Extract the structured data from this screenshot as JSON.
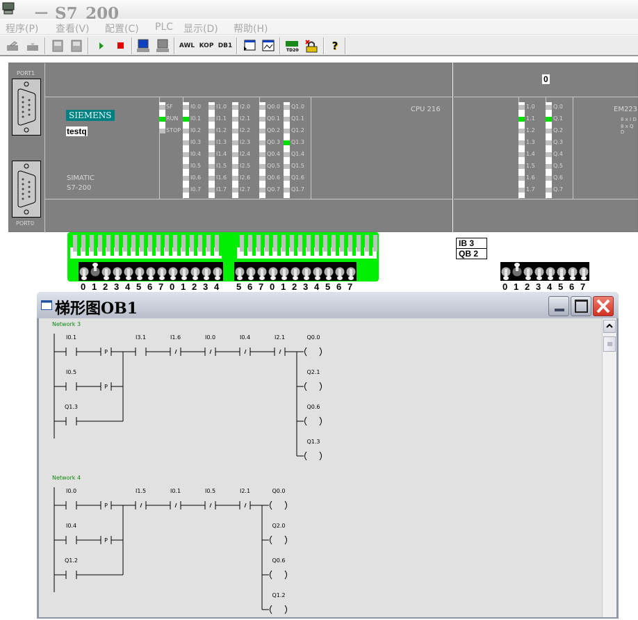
{
  "window": {
    "title": "－ S7_200",
    "icon": "plc-app-icon"
  },
  "menu": [
    "程序(P)",
    "查看(V)",
    "配置(C)",
    "PLC",
    "显示(D)",
    "帮助(H)"
  ],
  "toolbar": {
    "items": [
      {
        "icon": "upload-icon"
      },
      {
        "icon": "download-icon"
      },
      {
        "icon": "ob1-icon"
      },
      {
        "icon": "db1-file-icon"
      },
      {
        "icon": "run-icon"
      },
      {
        "icon": "stop-icon"
      },
      {
        "icon": "monitor-icon"
      },
      {
        "icon": "monitor-off-icon"
      },
      {
        "label": "AWL"
      },
      {
        "label": "KOP"
      },
      {
        "label": "DB1"
      },
      {
        "icon": "state-table-icon"
      },
      {
        "icon": "trend-icon"
      },
      {
        "icon": "td200-icon"
      },
      {
        "icon": "password-icon"
      },
      {
        "icon": "help-icon"
      }
    ]
  },
  "cpu": {
    "brand": "SIEMENS",
    "name": "testq",
    "family": "SIMATIC",
    "model": "S7-200",
    "type": "CPU 216",
    "port1": "PORT1",
    "port0": "PORT0",
    "status_leds": [
      {
        "label": "SF",
        "on": false
      },
      {
        "label": "RUN",
        "on": true
      },
      {
        "label": "STOP",
        "on": false
      }
    ],
    "io_columns": [
      {
        "labels": [
          "I0.0",
          "I0.1",
          "I0.2",
          "I0.3",
          "I0.4",
          "I0.5",
          "I0.6",
          "I0.7"
        ],
        "on": [
          false,
          true,
          false,
          false,
          false,
          false,
          false,
          false
        ]
      },
      {
        "labels": [
          "I1.0",
          "I1.1",
          "I1.2",
          "I1.3",
          "I1.4",
          "I1.5",
          "I1.6",
          "I1.7"
        ],
        "on": [
          false,
          false,
          false,
          false,
          false,
          false,
          false,
          false
        ]
      },
      {
        "labels": [
          "I2.0",
          "I2.1",
          "I2.2",
          "I2.3",
          "I2.4",
          "I2.5",
          "I2.6",
          "I2.7"
        ],
        "on": [
          false,
          false,
          false,
          false,
          false,
          false,
          false,
          false
        ]
      },
      {
        "labels": [
          "Q0.0",
          "Q0.1",
          "Q0.2",
          "Q0.3",
          "Q0.4",
          "Q0.5",
          "Q0.6",
          "Q0.7"
        ],
        "on": [
          false,
          false,
          false,
          false,
          false,
          false,
          false,
          false
        ]
      },
      {
        "labels": [
          "Q1.0",
          "Q1.1",
          "Q1.2",
          "Q1.3",
          "Q1.4",
          "Q1.5",
          "Q1.6",
          "Q1.7"
        ],
        "on": [
          false,
          false,
          false,
          true,
          false,
          false,
          false,
          false
        ]
      }
    ]
  },
  "expansion": {
    "slot": "0",
    "type": "EM223",
    "desc1": "8 x I D",
    "desc2": "8 x Q D",
    "io_columns": [
      {
        "labels": [
          "1.0",
          "1.1",
          "1.2",
          "1.3",
          "1.4",
          "1.5",
          "1.6",
          "1.7"
        ],
        "on": [
          false,
          true,
          false,
          false,
          false,
          false,
          false,
          false
        ]
      },
      {
        "labels": [
          "Q.0",
          "Q.1",
          "Q.2",
          "Q.3",
          "Q.4",
          "Q.5",
          "Q.6",
          "Q.7"
        ],
        "on": [
          false,
          true,
          false,
          false,
          false,
          false,
          false,
          false
        ]
      }
    ],
    "address_in": "IB 3",
    "address_out": "QB 2",
    "switches": {
      "labels": [
        "0",
        "1",
        "2",
        "3",
        "4",
        "5",
        "6",
        "7"
      ],
      "on": [
        false,
        true,
        false,
        false,
        false,
        false,
        false,
        false
      ]
    }
  },
  "cpu_switches": {
    "labels": [
      "0",
      "1",
      "2",
      "3",
      "4",
      "5",
      "6",
      "7",
      "0",
      "1",
      "2",
      "3",
      "4",
      "5",
      "6",
      "7",
      "0",
      "1",
      "2",
      "3",
      "4",
      "5",
      "6",
      "7"
    ],
    "on": [
      false,
      true,
      false,
      false,
      false,
      false,
      false,
      false,
      false,
      false,
      false,
      false,
      false,
      false,
      false,
      false,
      false,
      false,
      false,
      false,
      false,
      false,
      false,
      false
    ]
  },
  "ladder_window": {
    "title": "梯形图OB1"
  },
  "colors": {
    "panel": "#808080",
    "led_on": "#00e000",
    "switch_strip": "#00ee00",
    "brand": "#008080",
    "network_label": "#0a8a0a"
  },
  "networks": [
    {
      "label": "Network 3",
      "branches": [
        [
          {
            "t": "NO",
            "a": "I0.1"
          },
          {
            "t": "P"
          }
        ],
        [
          {
            "t": "NO",
            "a": "I0.5"
          },
          {
            "t": "P"
          }
        ],
        [
          {
            "t": "NO",
            "a": "Q1.3"
          }
        ]
      ],
      "series": [
        {
          "t": "NO",
          "a": "I3.1"
        },
        {
          "t": "NC",
          "a": "I1.6"
        },
        {
          "t": "NC",
          "a": "I0.0"
        },
        {
          "t": "NC",
          "a": "I0.4"
        },
        {
          "t": "NC",
          "a": "I2.1"
        }
      ],
      "coils": [
        "Q0.0",
        "Q2.1",
        "Q0.6",
        "Q1.3"
      ]
    },
    {
      "label": "Network 4",
      "branches": [
        [
          {
            "t": "NO",
            "a": "I0.0"
          },
          {
            "t": "P"
          }
        ],
        [
          {
            "t": "NO",
            "a": "I0.4"
          },
          {
            "t": "P"
          }
        ],
        [
          {
            "t": "NO",
            "a": "Q1.2"
          }
        ]
      ],
      "series": [
        {
          "t": "NC",
          "a": "I1.5"
        },
        {
          "t": "NC",
          "a": "I0.1"
        },
        {
          "t": "NC",
          "a": "I0.5"
        },
        {
          "t": "NC",
          "a": "I2.1"
        }
      ],
      "coils": [
        "Q0.0",
        "Q2.0",
        "Q0.6",
        "Q1.2"
      ]
    }
  ]
}
